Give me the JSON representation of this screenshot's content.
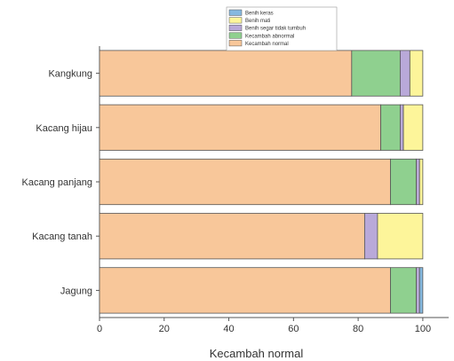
{
  "chart_data": {
    "type": "bar",
    "orientation": "horizontal",
    "stacked": true,
    "categories": [
      "Kangkung",
      "Kacang hijau",
      "Kacang panjang",
      "Kacang tanah",
      "Jagung"
    ],
    "series": [
      {
        "name": "Kecambah normal",
        "color": "#f8c79a",
        "values": [
          78,
          87,
          90,
          82,
          90
        ]
      },
      {
        "name": "Kecambah abnormal",
        "color": "#8fd08f",
        "values": [
          15,
          6,
          8,
          0,
          8
        ]
      },
      {
        "name": "Benih segar tidak tumbuh",
        "color": "#b9a9d9",
        "values": [
          3,
          1,
          1,
          4,
          1
        ]
      },
      {
        "name": "Benih mati",
        "color": "#fdf59a",
        "values": [
          4,
          6,
          1,
          14,
          0
        ]
      },
      {
        "name": "Benih keras",
        "color": "#86b9e0",
        "values": [
          0,
          0,
          0,
          0,
          1
        ]
      }
    ],
    "legend_order": [
      "Benih keras",
      "Benih mati",
      "Benih segar tidak tumbuh",
      "Kecambah abnormal",
      "Kecambah normal"
    ],
    "xlabel": "Kecambah normal",
    "xlim": [
      0,
      108
    ],
    "xticks": [
      0,
      20,
      40,
      60,
      80,
      100
    ],
    "legend_position": "top-center",
    "grid": false
  }
}
